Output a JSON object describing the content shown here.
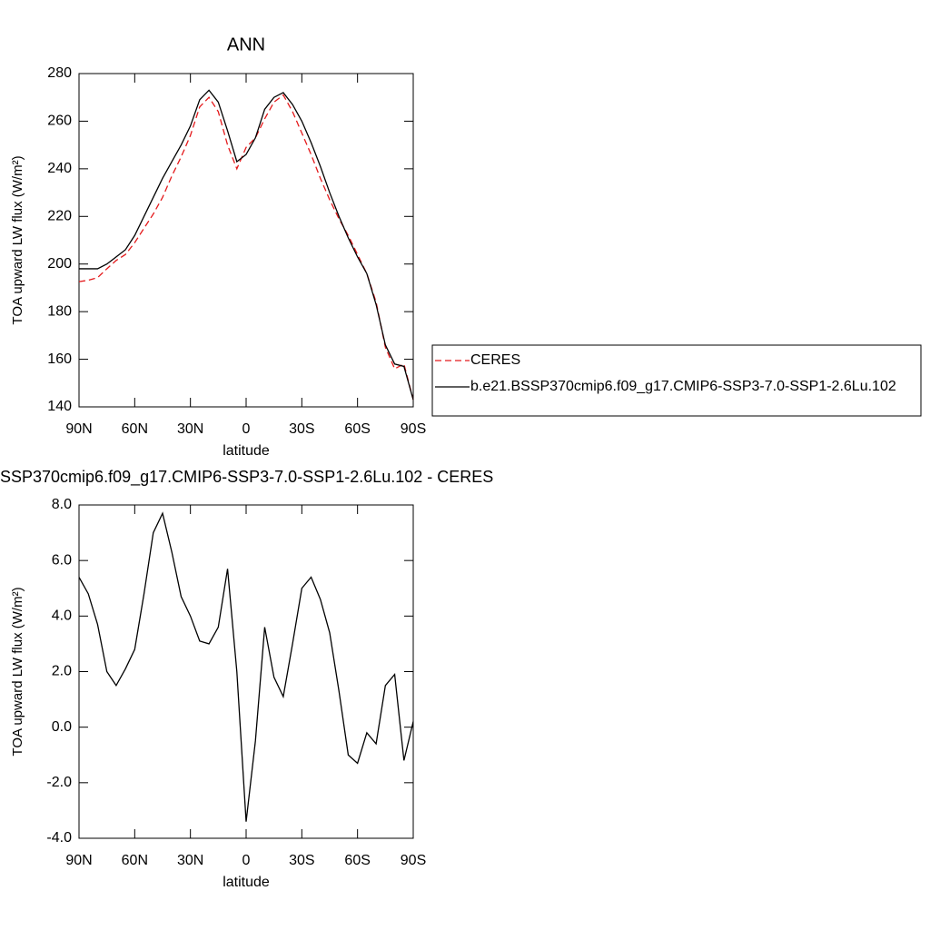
{
  "chart_data": [
    {
      "type": "line",
      "title": "ANN",
      "xlabel": "latitude",
      "ylabel": "TOA upward LW flux (W/m²)",
      "x": [
        90,
        85,
        80,
        75,
        70,
        65,
        60,
        55,
        50,
        45,
        40,
        35,
        30,
        25,
        20,
        15,
        10,
        5,
        0,
        -5,
        -10,
        -15,
        -20,
        -25,
        -30,
        -35,
        -40,
        -45,
        -50,
        -55,
        -60,
        -65,
        -70,
        -75,
        -80,
        -85,
        -90
      ],
      "series": [
        {
          "name": "CERES",
          "color": "#e41a1c",
          "dashed": true,
          "values": [
            192.6,
            193.2,
            194.3,
            198,
            201.5,
            204,
            209,
            215,
            221,
            228,
            237,
            245,
            254,
            266,
            270,
            264,
            250,
            240,
            249,
            253,
            261,
            268,
            271,
            264,
            255,
            246,
            236,
            227,
            219,
            212,
            204,
            196,
            184,
            165,
            156,
            158,
            143
          ]
        },
        {
          "name": "b.e21.BSSP370cmip6.f09_g17.CMIP6-SSP3-7.0-SSP1-2.6Lu.102",
          "color": "#000000",
          "dashed": false,
          "values": [
            198,
            198,
            198,
            200,
            203,
            206,
            212,
            220,
            228,
            236,
            243,
            250,
            258,
            269,
            273,
            268,
            256,
            243,
            246,
            253,
            265,
            270,
            272,
            267,
            260,
            251,
            241,
            230,
            220,
            211,
            203,
            196,
            183,
            166,
            158,
            157,
            143
          ]
        }
      ],
      "xlim": [
        90,
        -90
      ],
      "xticks": [
        {
          "value": 90,
          "label": "90N"
        },
        {
          "value": 60,
          "label": "60N"
        },
        {
          "value": 30,
          "label": "30N"
        },
        0,
        {
          "value": -30,
          "label": "30S"
        },
        {
          "value": -60,
          "label": "60S"
        },
        {
          "value": -90,
          "label": "90S"
        }
      ],
      "ylim": [
        140,
        280
      ],
      "yticks": [
        140,
        160,
        180,
        200,
        220,
        240,
        260,
        280
      ],
      "legend": "right"
    },
    {
      "type": "line",
      "title": "SSP370cmip6.f09_g17.CMIP6-SSP3-7.0-SSP1-2.6Lu.102 - CERES",
      "xlabel": "latitude",
      "ylabel": "TOA upward LW flux (W/m²)",
      "x": [
        90,
        85,
        80,
        75,
        70,
        65,
        60,
        55,
        50,
        45,
        40,
        35,
        30,
        25,
        20,
        15,
        10,
        5,
        0,
        -5,
        -10,
        -15,
        -20,
        -25,
        -30,
        -35,
        -40,
        -45,
        -50,
        -55,
        -60,
        -65,
        -70,
        -75,
        -80,
        -85,
        -90
      ],
      "values": [
        5.4,
        4.8,
        3.7,
        2.0,
        1.5,
        2.1,
        2.8,
        4.8,
        7.0,
        7.7,
        6.3,
        4.7,
        4.0,
        3.1,
        3.0,
        3.6,
        5.7,
        2.0,
        -3.4,
        -0.5,
        3.6,
        1.8,
        1.1,
        3.0,
        5.0,
        5.4,
        4.6,
        3.4,
        1.3,
        -1.0,
        -1.3,
        -0.2,
        -0.6,
        1.5,
        1.9,
        -1.2,
        0.2
      ],
      "color": "#000000",
      "xlim": [
        90,
        -90
      ],
      "xticks": [
        {
          "value": 90,
          "label": "90N"
        },
        {
          "value": 60,
          "label": "60N"
        },
        {
          "value": 30,
          "label": "30N"
        },
        0,
        {
          "value": -30,
          "label": "30S"
        },
        {
          "value": -60,
          "label": "60S"
        },
        {
          "value": -90,
          "label": "90S"
        }
      ],
      "ylim": [
        -4,
        8
      ],
      "yticks": [
        {
          "value": -4,
          "label": "-4.0"
        },
        {
          "value": -2,
          "label": "-2.0"
        },
        {
          "value": 0,
          "label": "0.0"
        },
        {
          "value": 2,
          "label": "2.0"
        },
        {
          "value": 4,
          "label": "4.0"
        },
        {
          "value": 6,
          "label": "6.0"
        },
        {
          "value": 8,
          "label": "8.0"
        }
      ]
    }
  ]
}
